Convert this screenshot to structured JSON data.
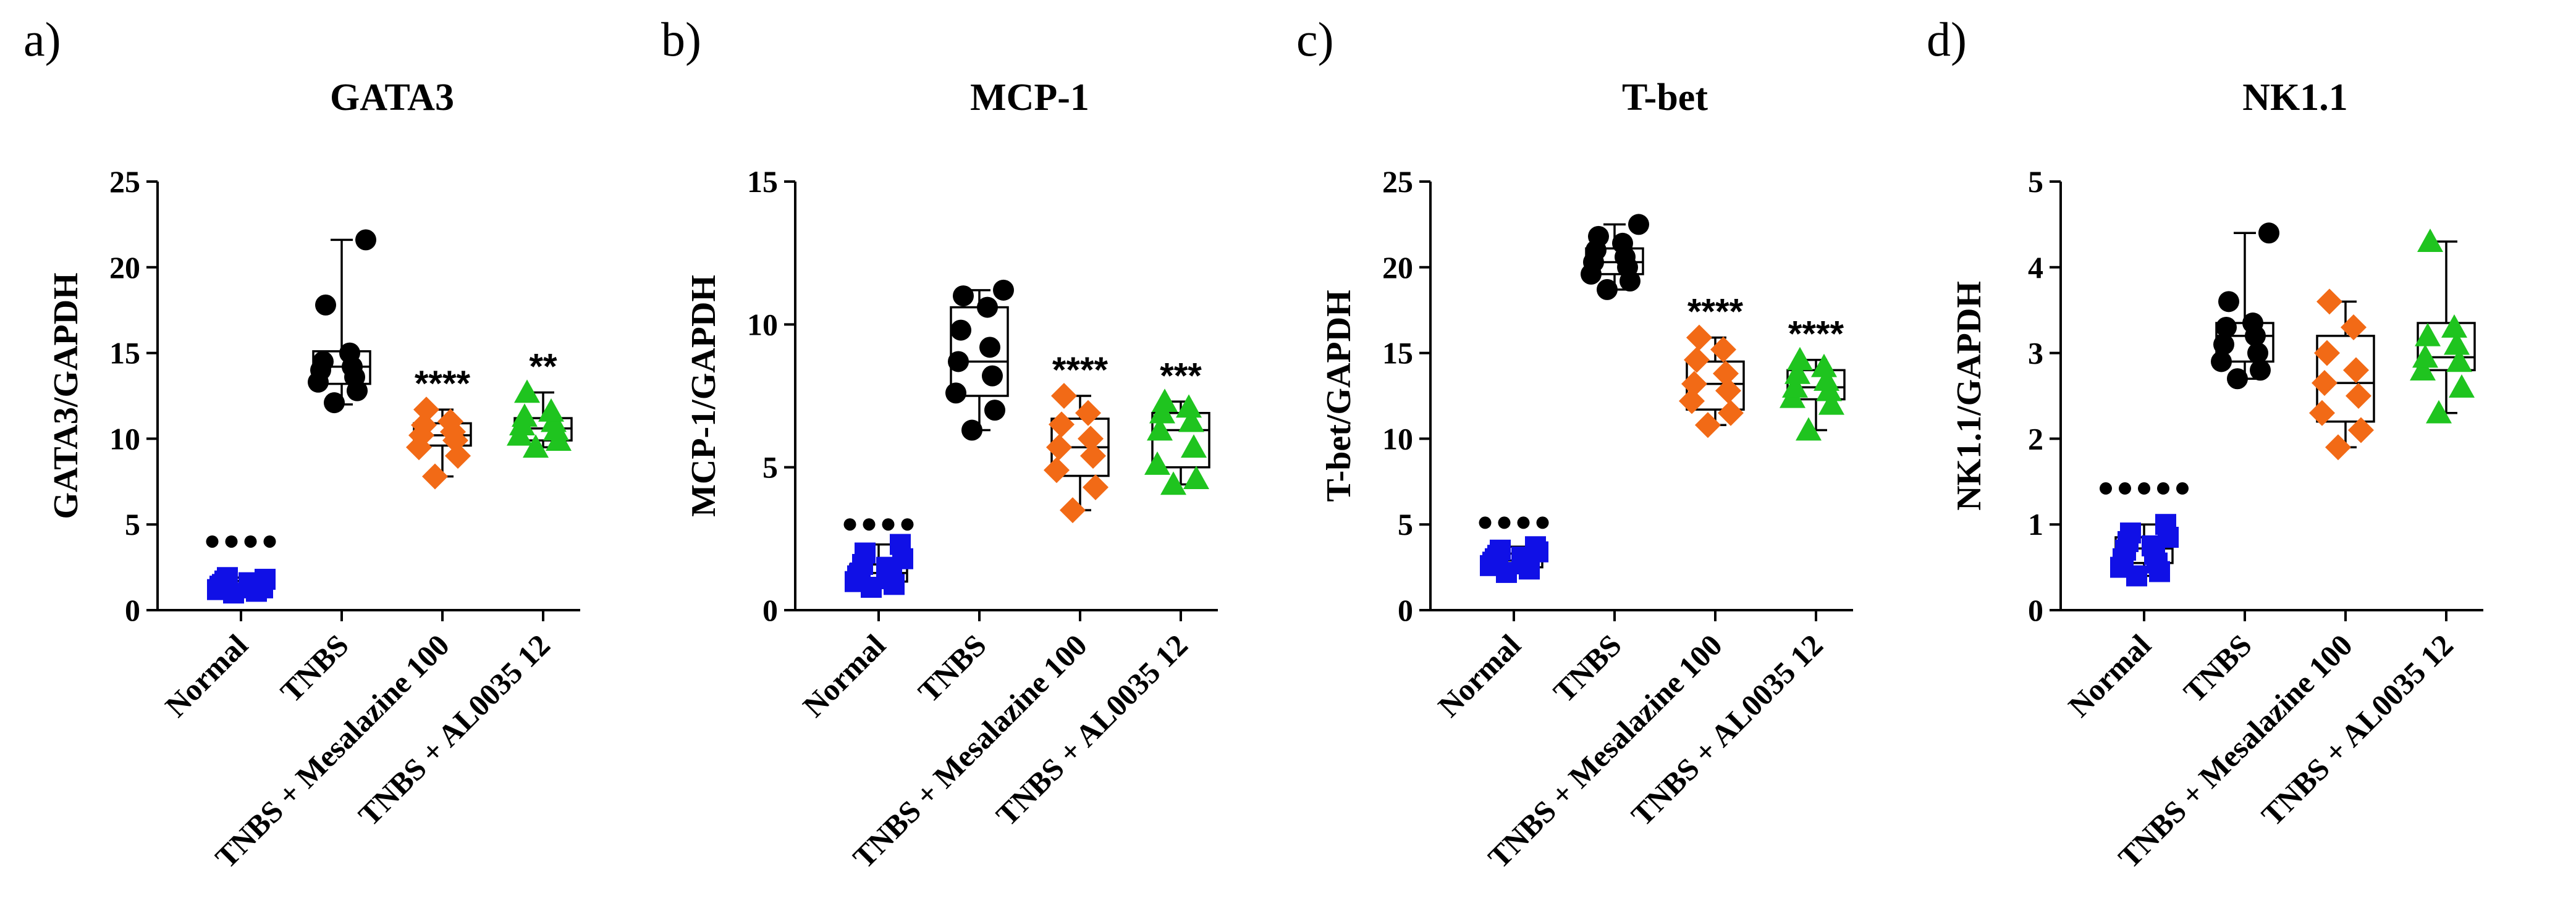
{
  "chart_data": [
    {
      "type": "box",
      "panel_label": "a)",
      "title": "GATA3",
      "ylabel": "GATA3/GAPDH",
      "ylim": [
        0,
        25
      ],
      "yticks": [
        0,
        5,
        10,
        15,
        20,
        25
      ],
      "categories": [
        "Normal",
        "TNBS",
        "TNBS + Mesalazine 100",
        "TNBS + AL0035 12"
      ],
      "colors": [
        "#1010e6",
        "#000000",
        "#f26a16",
        "#1fc41f"
      ],
      "markers": [
        "square",
        "circle",
        "diamond",
        "triangle"
      ],
      "reference_dots": {
        "count": 4,
        "y": 4.0
      },
      "groups": [
        {
          "name": "Normal",
          "box": {
            "min": 1.0,
            "q1": 1.2,
            "median": 1.5,
            "q3": 1.7,
            "max": 1.9
          },
          "points": [
            1.0,
            1.1,
            1.2,
            1.3,
            1.4,
            1.5,
            1.5,
            1.6,
            1.7,
            1.8,
            1.9,
            1.3
          ],
          "sig": ""
        },
        {
          "name": "TNBS",
          "box": {
            "min": 12.0,
            "q1": 13.2,
            "median": 14.2,
            "q3": 15.1,
            "max": 21.6
          },
          "points": [
            12.1,
            12.8,
            13.3,
            13.6,
            14.0,
            14.2,
            14.5,
            15.0,
            17.8,
            21.6
          ],
          "sig": ""
        },
        {
          "name": "TNBS + Mesalazine 100",
          "box": {
            "min": 7.8,
            "q1": 9.6,
            "median": 10.2,
            "q3": 10.9,
            "max": 11.7
          },
          "points": [
            7.8,
            9.0,
            9.5,
            9.9,
            10.2,
            10.4,
            10.8,
            11.0,
            11.7
          ],
          "sig": "****"
        },
        {
          "name": "TNBS + AL0035 12",
          "box": {
            "min": 9.5,
            "q1": 9.9,
            "median": 10.6,
            "q3": 11.2,
            "max": 12.7
          },
          "points": [
            9.5,
            9.9,
            10.2,
            10.5,
            10.8,
            11.0,
            11.3,
            11.6,
            12.7
          ],
          "sig": "**"
        }
      ]
    },
    {
      "type": "box",
      "panel_label": "b)",
      "title": "MCP-1",
      "ylabel": "MCP-1/GAPDH",
      "ylim": [
        0,
        15
      ],
      "yticks": [
        0,
        5,
        10,
        15
      ],
      "categories": [
        "Normal",
        "TNBS",
        "TNBS + Mesalazine 100",
        "TNBS + AL0035 12"
      ],
      "colors": [
        "#1010e6",
        "#000000",
        "#f26a16",
        "#1fc41f"
      ],
      "markers": [
        "square",
        "circle",
        "diamond",
        "triangle"
      ],
      "reference_dots": {
        "count": 4,
        "y": 3.0
      },
      "groups": [
        {
          "name": "Normal",
          "box": {
            "min": 0.8,
            "q1": 1.0,
            "median": 1.3,
            "q3": 1.6,
            "max": 2.3
          },
          "points": [
            0.8,
            0.9,
            1.0,
            1.1,
            1.2,
            1.3,
            1.3,
            1.5,
            1.6,
            1.8,
            2.0,
            2.3
          ],
          "sig": ""
        },
        {
          "name": "TNBS",
          "box": {
            "min": 6.3,
            "q1": 7.5,
            "median": 8.7,
            "q3": 10.6,
            "max": 11.2
          },
          "points": [
            6.3,
            7.0,
            7.6,
            8.2,
            8.7,
            9.2,
            9.8,
            10.6,
            11.0,
            11.2
          ],
          "sig": ""
        },
        {
          "name": "TNBS + Mesalazine 100",
          "box": {
            "min": 3.5,
            "q1": 4.7,
            "median": 5.7,
            "q3": 6.7,
            "max": 7.5
          },
          "points": [
            3.5,
            4.3,
            4.9,
            5.4,
            5.7,
            6.0,
            6.5,
            6.9,
            7.5
          ],
          "sig": "****"
        },
        {
          "name": "TNBS + AL0035 12",
          "box": {
            "min": 4.4,
            "q1": 5.0,
            "median": 6.3,
            "q3": 6.9,
            "max": 7.3
          },
          "points": [
            4.4,
            4.6,
            5.1,
            5.7,
            6.3,
            6.6,
            6.9,
            7.1,
            7.3
          ],
          "sig": "***"
        }
      ]
    },
    {
      "type": "box",
      "panel_label": "c)",
      "title": "T-bet",
      "ylabel": "T-bet/GAPDH",
      "ylim": [
        0,
        25
      ],
      "yticks": [
        0,
        5,
        10,
        15,
        20,
        25
      ],
      "categories": [
        "Normal",
        "TNBS",
        "TNBS + Mesalazine 100",
        "TNBS + AL0035 12"
      ],
      "colors": [
        "#1010e6",
        "#000000",
        "#f26a16",
        "#1fc41f"
      ],
      "markers": [
        "square",
        "circle",
        "diamond",
        "triangle"
      ],
      "reference_dots": {
        "count": 4,
        "y": 5.1
      },
      "groups": [
        {
          "name": "Normal",
          "box": {
            "min": 2.2,
            "q1": 2.5,
            "median": 2.9,
            "q3": 3.3,
            "max": 3.7
          },
          "points": [
            2.2,
            2.4,
            2.6,
            2.7,
            2.8,
            2.9,
            3.0,
            3.1,
            3.2,
            3.4,
            3.5,
            3.7
          ],
          "sig": ""
        },
        {
          "name": "TNBS",
          "box": {
            "min": 18.7,
            "q1": 19.6,
            "median": 20.3,
            "q3": 21.1,
            "max": 22.5
          },
          "points": [
            18.7,
            19.2,
            19.6,
            20.0,
            20.3,
            20.6,
            21.0,
            21.4,
            21.8,
            22.5
          ],
          "sig": ""
        },
        {
          "name": "TNBS + Mesalazine 100",
          "box": {
            "min": 10.8,
            "q1": 11.7,
            "median": 13.2,
            "q3": 14.5,
            "max": 15.9
          },
          "points": [
            10.8,
            11.5,
            12.2,
            12.8,
            13.2,
            13.8,
            14.6,
            15.2,
            15.9
          ],
          "sig": "****"
        },
        {
          "name": "TNBS + AL0035 12",
          "box": {
            "min": 10.5,
            "q1": 12.3,
            "median": 13.0,
            "q3": 14.0,
            "max": 14.6
          },
          "points": [
            10.5,
            12.0,
            12.4,
            12.8,
            13.0,
            13.4,
            13.8,
            14.2,
            14.6
          ],
          "sig": "****"
        }
      ]
    },
    {
      "type": "box",
      "panel_label": "d)",
      "title": "NK1.1",
      "ylabel": "NK1.1/GAPDH",
      "ylim": [
        0,
        5
      ],
      "yticks": [
        0,
        1,
        2,
        3,
        4,
        5
      ],
      "categories": [
        "Normal",
        "TNBS",
        "TNBS + Mesalazine 100",
        "TNBS + AL0035 12"
      ],
      "colors": [
        "#1010e6",
        "#000000",
        "#f26a16",
        "#1fc41f"
      ],
      "markers": [
        "square",
        "circle",
        "diamond",
        "triangle"
      ],
      "reference_dots": {
        "count": 5,
        "y": 1.42
      },
      "groups": [
        {
          "name": "Normal",
          "box": {
            "min": 0.4,
            "q1": 0.55,
            "median": 0.72,
            "q3": 0.85,
            "max": 1.0
          },
          "points": [
            0.4,
            0.45,
            0.5,
            0.55,
            0.6,
            0.65,
            0.7,
            0.75,
            0.8,
            0.85,
            0.9,
            1.0
          ],
          "sig": ""
        },
        {
          "name": "TNBS",
          "box": {
            "min": 2.7,
            "q1": 2.9,
            "median": 3.2,
            "q3": 3.35,
            "max": 4.4
          },
          "points": [
            2.7,
            2.8,
            2.9,
            3.0,
            3.1,
            3.2,
            3.3,
            3.35,
            3.6,
            4.4
          ],
          "sig": ""
        },
        {
          "name": "TNBS + Mesalazine 100",
          "box": {
            "min": 1.9,
            "q1": 2.2,
            "median": 2.65,
            "q3": 3.2,
            "max": 3.6
          },
          "points": [
            1.9,
            2.1,
            2.3,
            2.5,
            2.65,
            2.8,
            3.0,
            3.3,
            3.6
          ],
          "sig": ""
        },
        {
          "name": "TNBS + AL0035 12",
          "box": {
            "min": 2.3,
            "q1": 2.8,
            "median": 2.95,
            "q3": 3.35,
            "max": 4.3
          },
          "points": [
            2.3,
            2.6,
            2.8,
            2.9,
            2.95,
            3.1,
            3.2,
            3.3,
            4.3
          ],
          "sig": ""
        }
      ]
    }
  ]
}
